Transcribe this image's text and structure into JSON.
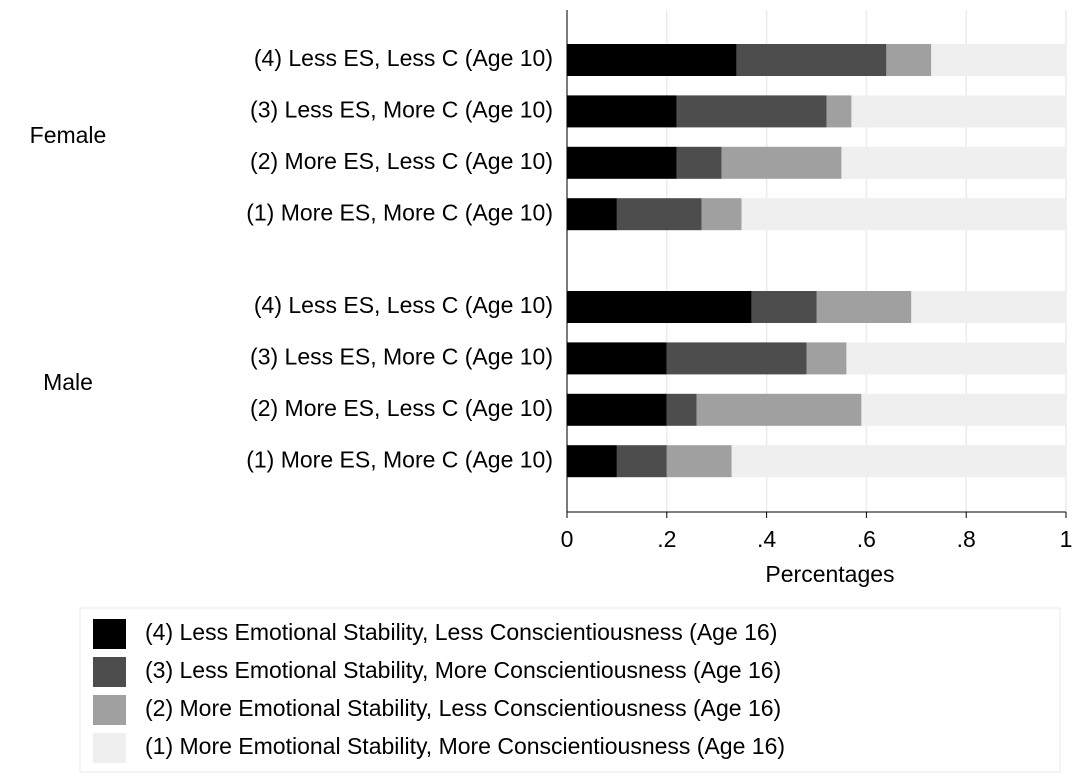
{
  "chart_data": {
    "type": "stacked-bar-horizontal",
    "x_label": "Percentages",
    "group_labels": [
      "Female",
      "Male"
    ],
    "categories": [
      "(4) Less ES, Less C (Age 10)",
      "(3) Less ES, More C (Age 10)",
      "(2) More ES, Less C (Age 10)",
      "(1) More ES, More C (Age 10)",
      "(4) Less ES, Less C (Age 10)",
      "(3) Less ES, More C (Age 10)",
      "(2) More ES, Less C (Age 10)",
      "(1) More ES, More C (Age 10)"
    ],
    "series": [
      {
        "name": "(4) Less Emotional Stability, Less Conscientiousness (Age 16)",
        "color": "#000000",
        "values": [
          0.34,
          0.22,
          0.22,
          0.1,
          0.37,
          0.2,
          0.2,
          0.1
        ]
      },
      {
        "name": "(3) Less Emotional Stability, More Conscientiousness (Age 16)",
        "color": "#4d4d4d",
        "values": [
          0.3,
          0.3,
          0.09,
          0.17,
          0.13,
          0.28,
          0.06,
          0.1
        ]
      },
      {
        "name": "(2) More Emotional Stability, Less Conscientiousness (Age 16)",
        "color": "#a0a0a0",
        "values": [
          0.09,
          0.05,
          0.24,
          0.08,
          0.19,
          0.08,
          0.33,
          0.13
        ]
      },
      {
        "name": "(1) More Emotional Stability, More Conscientiousness (Age 16)",
        "color": "#efefef",
        "values": [
          0.27,
          0.43,
          0.45,
          0.65,
          0.31,
          0.44,
          0.41,
          0.67
        ]
      }
    ],
    "xlim": [
      0,
      1
    ],
    "xticks": [
      0,
      {
        "value": 0.2,
        "label": ".2"
      },
      {
        "value": 0.4,
        "label": ".4"
      },
      {
        "value": 0.6,
        "label": ".6"
      },
      {
        "value": 0.8,
        "label": ".8"
      },
      1
    ],
    "grid": true
  }
}
